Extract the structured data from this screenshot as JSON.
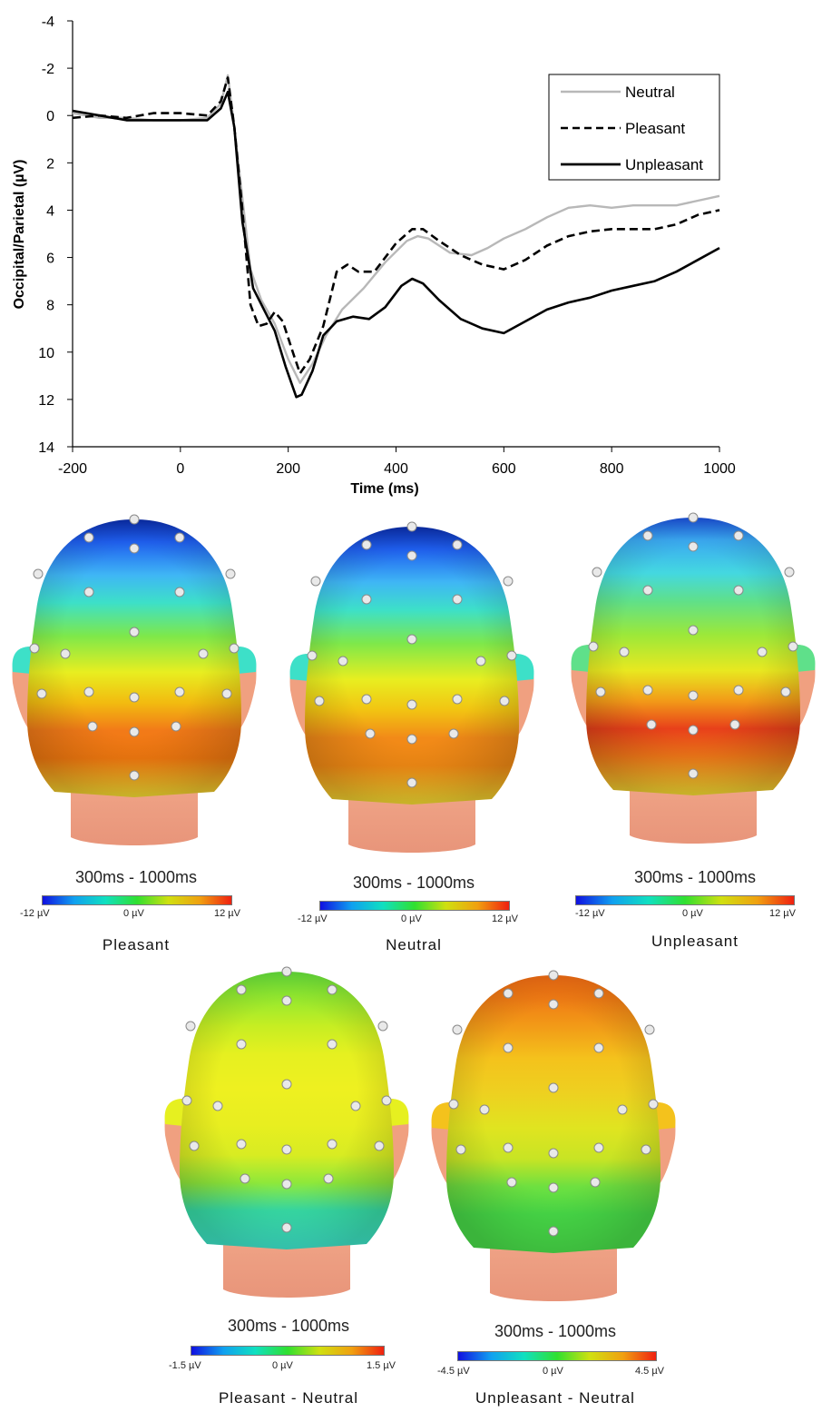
{
  "chart_data": {
    "type": "line",
    "title": "",
    "xlabel": "Time (ms)",
    "ylabel": "Occipital/Parietal (µV)",
    "xlim": [
      -200,
      1000
    ],
    "ylim": [
      -4,
      14
    ],
    "y_inverted": true,
    "x_ticks": [
      "-200",
      "0",
      "200",
      "400",
      "600",
      "800",
      "1000"
    ],
    "y_ticks": [
      "-4",
      "-2",
      "0",
      "2",
      "4",
      "6",
      "8",
      "10",
      "12",
      "14"
    ],
    "grid": false,
    "legend_position": "top-right",
    "series": [
      {
        "name": "Neutral",
        "color": "#b8b8b8",
        "dash": "solid",
        "points": [
          [
            -200,
            -0.1
          ],
          [
            -150,
            0.1
          ],
          [
            -100,
            0.1
          ],
          [
            -50,
            0.2
          ],
          [
            0,
            0.2
          ],
          [
            50,
            0.1
          ],
          [
            75,
            -0.5
          ],
          [
            88,
            -1.7
          ],
          [
            100,
            0.5
          ],
          [
            115,
            3.5
          ],
          [
            130,
            6.5
          ],
          [
            150,
            7.8
          ],
          [
            175,
            8.8
          ],
          [
            200,
            10.3
          ],
          [
            222,
            11.3
          ],
          [
            245,
            10.5
          ],
          [
            270,
            9.3
          ],
          [
            300,
            8.2
          ],
          [
            340,
            7.3
          ],
          [
            380,
            6.2
          ],
          [
            420,
            5.3
          ],
          [
            440,
            5.1
          ],
          [
            460,
            5.2
          ],
          [
            500,
            5.8
          ],
          [
            540,
            5.9
          ],
          [
            570,
            5.6
          ],
          [
            600,
            5.2
          ],
          [
            640,
            4.8
          ],
          [
            680,
            4.3
          ],
          [
            720,
            3.9
          ],
          [
            760,
            3.8
          ],
          [
            800,
            3.9
          ],
          [
            840,
            3.8
          ],
          [
            880,
            3.8
          ],
          [
            920,
            3.8
          ],
          [
            960,
            3.6
          ],
          [
            1000,
            3.4
          ]
        ]
      },
      {
        "name": "Pleasant",
        "color": "#000000",
        "dash": "dashed",
        "points": [
          [
            -200,
            0.1
          ],
          [
            -150,
            0.0
          ],
          [
            -100,
            0.1
          ],
          [
            -50,
            -0.1
          ],
          [
            0,
            -0.1
          ],
          [
            50,
            0.0
          ],
          [
            75,
            -0.6
          ],
          [
            88,
            -1.6
          ],
          [
            100,
            0.5
          ],
          [
            115,
            4.0
          ],
          [
            130,
            8.0
          ],
          [
            145,
            8.9
          ],
          [
            160,
            8.8
          ],
          [
            175,
            8.3
          ],
          [
            190,
            8.7
          ],
          [
            210,
            10.1
          ],
          [
            222,
            10.9
          ],
          [
            240,
            10.3
          ],
          [
            265,
            8.9
          ],
          [
            290,
            6.6
          ],
          [
            310,
            6.3
          ],
          [
            330,
            6.6
          ],
          [
            360,
            6.6
          ],
          [
            400,
            5.4
          ],
          [
            430,
            4.8
          ],
          [
            450,
            4.8
          ],
          [
            480,
            5.3
          ],
          [
            520,
            5.9
          ],
          [
            560,
            6.3
          ],
          [
            600,
            6.5
          ],
          [
            640,
            6.1
          ],
          [
            680,
            5.5
          ],
          [
            720,
            5.1
          ],
          [
            760,
            4.9
          ],
          [
            800,
            4.8
          ],
          [
            840,
            4.8
          ],
          [
            880,
            4.8
          ],
          [
            920,
            4.6
          ],
          [
            960,
            4.2
          ],
          [
            1000,
            4.0
          ]
        ]
      },
      {
        "name": "Unpleasant",
        "color": "#000000",
        "dash": "solid",
        "points": [
          [
            -200,
            -0.2
          ],
          [
            -150,
            0.0
          ],
          [
            -100,
            0.2
          ],
          [
            -50,
            0.2
          ],
          [
            0,
            0.2
          ],
          [
            50,
            0.2
          ],
          [
            75,
            -0.3
          ],
          [
            88,
            -1.0
          ],
          [
            100,
            0.5
          ],
          [
            115,
            4.5
          ],
          [
            135,
            7.3
          ],
          [
            155,
            8.2
          ],
          [
            175,
            9.1
          ],
          [
            195,
            10.6
          ],
          [
            215,
            11.9
          ],
          [
            225,
            11.8
          ],
          [
            245,
            10.8
          ],
          [
            265,
            9.3
          ],
          [
            290,
            8.7
          ],
          [
            320,
            8.5
          ],
          [
            350,
            8.6
          ],
          [
            380,
            8.1
          ],
          [
            410,
            7.2
          ],
          [
            430,
            6.9
          ],
          [
            450,
            7.1
          ],
          [
            480,
            7.8
          ],
          [
            520,
            8.6
          ],
          [
            560,
            9.0
          ],
          [
            600,
            9.2
          ],
          [
            640,
            8.7
          ],
          [
            680,
            8.2
          ],
          [
            720,
            7.9
          ],
          [
            760,
            7.7
          ],
          [
            800,
            7.4
          ],
          [
            840,
            7.2
          ],
          [
            880,
            7.0
          ],
          [
            920,
            6.6
          ],
          [
            960,
            6.1
          ],
          [
            1000,
            5.6
          ]
        ]
      }
    ]
  },
  "topomaps": [
    {
      "id": "pleasant",
      "caption": "Pleasant",
      "window": "300ms - 1000ms",
      "scale_min": "-12 µV",
      "scale_mid": "0 µV",
      "scale_max": "12 µV",
      "colors": [
        "#0a2ca8",
        "#1f5ff0",
        "#3fb6f5",
        "#3de0c8",
        "#7ee84a",
        "#e8ee20",
        "#f2bb10",
        "#f27a18",
        "#f0780f",
        "#e8d230"
      ]
    },
    {
      "id": "neutral",
      "caption": "Neutral",
      "window": "300ms - 1000ms",
      "scale_min": "-12 µV",
      "scale_mid": "0 µV",
      "scale_max": "12 µV",
      "colors": [
        "#0a2ca8",
        "#1f5ff0",
        "#3fb6f5",
        "#3de0c8",
        "#7ee84a",
        "#e8ee20",
        "#f2c412",
        "#f28a18",
        "#f28a14",
        "#e8d230"
      ]
    },
    {
      "id": "unpleasant",
      "caption": "Unpleasant",
      "window": "300ms - 1000ms",
      "scale_min": "-12 µV",
      "scale_mid": "0 µV",
      "scale_max": "12 µV",
      "colors": [
        "#1a4fd8",
        "#3aa8f2",
        "#44d8e0",
        "#5fe08a",
        "#9be83a",
        "#e8e820",
        "#f29a18",
        "#e8401a",
        "#f07818",
        "#e8d230"
      ]
    },
    {
      "id": "pleasant-neutral",
      "caption": "Pleasant - Neutral",
      "window": "300ms - 1000ms",
      "scale_min": "-1.5 µV",
      "scale_mid": "0 µV",
      "scale_max": "1.5 µV",
      "colors": [
        "#62dc3a",
        "#8ee830",
        "#c8ee22",
        "#e6f020",
        "#eef020",
        "#e8ee20",
        "#d8ec22",
        "#8ee83a",
        "#38e0a8",
        "#3de0c8"
      ]
    },
    {
      "id": "unpleasant-neutral",
      "caption": "Unpleasant - Neutral",
      "window": "300ms - 1000ms",
      "scale_min": "-4.5 µV",
      "scale_mid": "0 µV",
      "scale_max": "4.5 µV",
      "colors": [
        "#ee6a12",
        "#f07a14",
        "#f2a018",
        "#f4c21c",
        "#eed020",
        "#e0e420",
        "#c8e424",
        "#6ee040",
        "#48dc48",
        "#48dc48"
      ]
    }
  ]
}
